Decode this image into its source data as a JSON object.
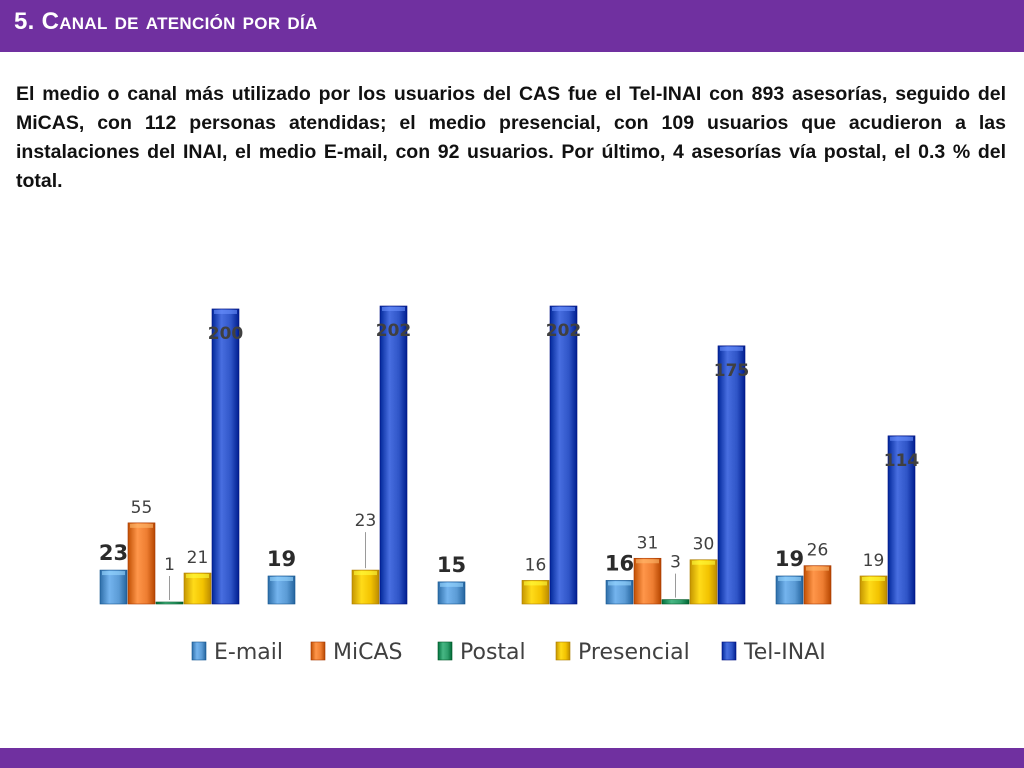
{
  "header": {
    "title": "5. Canal de atención por día"
  },
  "body_text": "El medio o canal más utilizado por los usuarios del CAS fue el Tel-INAI con 893 asesorías, seguido del MiCAS, con 112 personas atendidas; el medio presencial, con 109 usuarios que acudieron a las instalaciones del INAI, el medio E-mail, con 92 usuarios. Por último, 4 asesorías vía postal, el 0.3 % del total.",
  "colors": {
    "accent": "#7030a0",
    "E-mail": "#5b9bd5",
    "MiCAS": "#ed7d31",
    "Postal": "#2e9e6b",
    "Presencial": "#f2c200",
    "Tel-INAI": "#2f55c7"
  },
  "chart_data": {
    "type": "bar",
    "categories": [
      "",
      "",
      "",
      "",
      ""
    ],
    "series": [
      {
        "name": "E-mail",
        "values": [
          23,
          19,
          15,
          16,
          19
        ]
      },
      {
        "name": "MiCAS",
        "values": [
          55,
          null,
          null,
          31,
          26
        ]
      },
      {
        "name": "Postal",
        "values": [
          1,
          null,
          null,
          3,
          null
        ]
      },
      {
        "name": "Presencial",
        "values": [
          21,
          23,
          16,
          30,
          19
        ]
      },
      {
        "name": "Tel-INAI",
        "values": [
          200,
          202,
          202,
          175,
          114
        ]
      }
    ],
    "legend": [
      "E-mail",
      "MiCAS",
      "Postal",
      "Presencial",
      "Tel-INAI"
    ],
    "legend_position": "bottom",
    "grid": false,
    "ylim": [
      0,
      202
    ]
  }
}
